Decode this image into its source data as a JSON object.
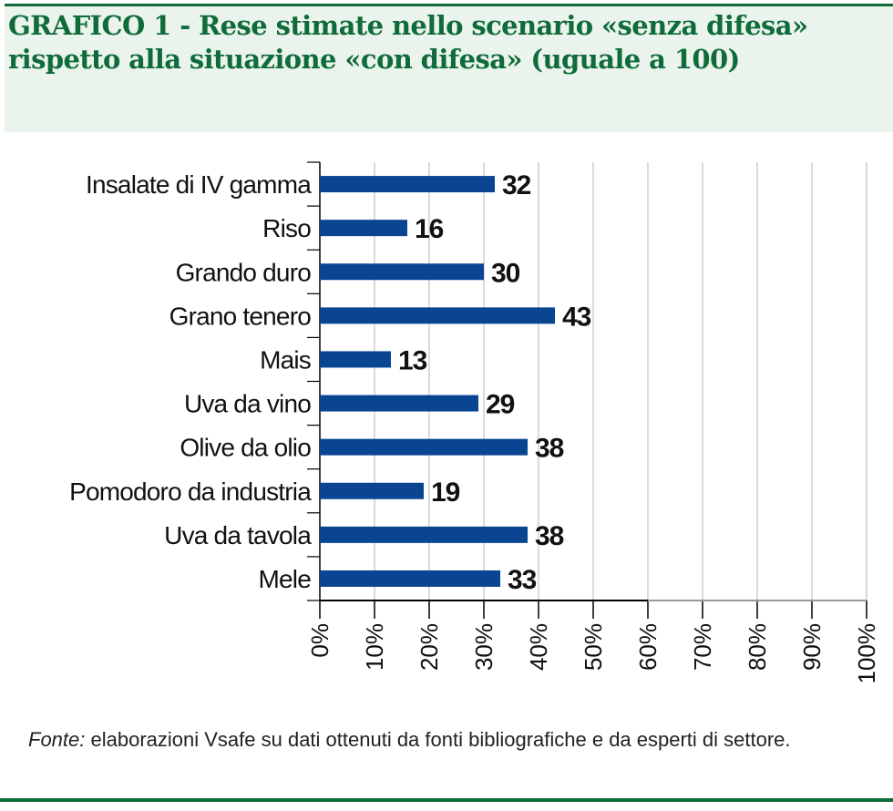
{
  "chart_data": {
    "type": "bar",
    "orientation": "horizontal",
    "title": "GRAFICO 1 - Rese stimate nello scenario «senza difesa» rispetto alla situazione «con difesa» (uguale a 100)",
    "categories": [
      "Insalate di IV gamma",
      "Riso",
      "Grando duro",
      "Grano tenero",
      "Mais",
      "Uva da vino",
      "Olive da olio",
      "Pomodoro da industria",
      "Uva da tavola",
      "Mele"
    ],
    "values": [
      32,
      16,
      30,
      43,
      13,
      29,
      38,
      19,
      38,
      33
    ],
    "xlim": [
      0,
      100
    ],
    "xticks": [
      "0%",
      "10%",
      "20%",
      "30%",
      "40%",
      "50%",
      "60%",
      "70%",
      "80%",
      "90%",
      "100%"
    ],
    "grid": true,
    "bar_color": "#0a4592"
  },
  "source": {
    "label": "Fonte:",
    "text": " elaborazioni Vsafe su dati ottenuti da fonti bibliografiche e da esperti di settore."
  }
}
